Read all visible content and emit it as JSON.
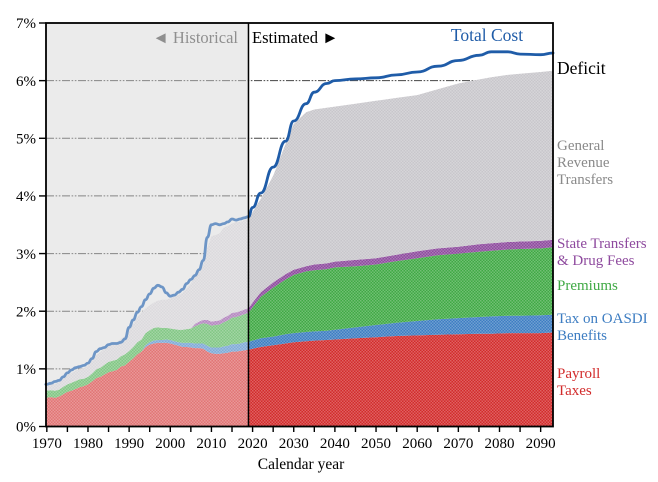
{
  "chart": {
    "xlabel": "Calendar year",
    "region_labels": {
      "historical": "◄ Historical",
      "estimated": "Estimated ►"
    },
    "annotations": {
      "total_cost": "Total Cost",
      "deficit": "Deficit",
      "grt": [
        "General",
        "Revenue",
        "Transfers"
      ],
      "state": [
        "State Transfers",
        "& Drug Fees"
      ],
      "premiums": "Premiums",
      "oasdi": [
        "Tax on OASDI",
        "Benefits"
      ],
      "payroll": [
        "Payroll",
        "Taxes"
      ]
    },
    "colors": {
      "payroll": "#d22b2b",
      "oasdi": "#3d7dc2",
      "premiums": "#3fa944",
      "state": "#8e4a9e",
      "grt": "#c8c6cb",
      "total_cost_line": "#1f5ca8",
      "historical_bg": "#e0e0e0",
      "label_gray": "#8a8a8a",
      "grid": "#444444",
      "axis": "#000000"
    }
  },
  "chart_data": {
    "type": "area",
    "title": "",
    "xlabel": "Calendar year",
    "ylabel": "",
    "ylim": [
      0,
      7
    ],
    "y_tick_labels": [
      "0%",
      "1%",
      "2%",
      "3%",
      "4%",
      "5%",
      "6%",
      "7%"
    ],
    "x_tick_labels": [
      "1970",
      "1980",
      "1990",
      "2000",
      "2010",
      "2020",
      "2030",
      "2040",
      "2050",
      "2060",
      "2070",
      "2080",
      "2090"
    ],
    "x_ticks": [
      1970,
      1980,
      1990,
      2000,
      2010,
      2020,
      2030,
      2040,
      2050,
      2060,
      2070,
      2080,
      2090
    ],
    "x_minor_tick_step": 5,
    "x_range_drawn": [
      1969.8,
      2093
    ],
    "boundary_year": 2019,
    "grid": true,
    "legend_position": "right-margin-labels",
    "years": [
      1970,
      1971,
      1972,
      1973,
      1974,
      1975,
      1976,
      1977,
      1978,
      1979,
      1980,
      1981,
      1982,
      1983,
      1984,
      1985,
      1986,
      1987,
      1988,
      1989,
      1990,
      1991,
      1992,
      1993,
      1994,
      1995,
      1996,
      1997,
      1998,
      1999,
      2000,
      2001,
      2002,
      2003,
      2004,
      2005,
      2006,
      2007,
      2008,
      2009,
      2010,
      2011,
      2012,
      2013,
      2014,
      2015,
      2016,
      2017,
      2018,
      2019,
      2020,
      2022,
      2025,
      2028,
      2030,
      2033,
      2035,
      2038,
      2040,
      2045,
      2050,
      2055,
      2060,
      2065,
      2070,
      2075,
      2078,
      2082,
      2085,
      2090,
      2093
    ],
    "stacked_series": [
      {
        "name": "Payroll Taxes",
        "color_key": "payroll",
        "values": [
          0.5,
          0.51,
          0.5,
          0.52,
          0.56,
          0.6,
          0.62,
          0.65,
          0.68,
          0.7,
          0.73,
          0.78,
          0.84,
          0.86,
          0.9,
          0.94,
          0.96,
          0.98,
          1.04,
          1.06,
          1.12,
          1.18,
          1.25,
          1.3,
          1.38,
          1.42,
          1.44,
          1.45,
          1.45,
          1.45,
          1.44,
          1.42,
          1.4,
          1.38,
          1.38,
          1.37,
          1.36,
          1.36,
          1.35,
          1.3,
          1.27,
          1.26,
          1.26,
          1.27,
          1.28,
          1.3,
          1.3,
          1.31,
          1.32,
          1.33,
          1.35,
          1.38,
          1.41,
          1.44,
          1.46,
          1.48,
          1.49,
          1.5,
          1.51,
          1.53,
          1.55,
          1.57,
          1.58,
          1.59,
          1.6,
          1.61,
          1.61,
          1.62,
          1.62,
          1.62,
          1.63
        ]
      },
      {
        "name": "Tax on OASDI Benefits",
        "color_key": "oasdi",
        "values": [
          0,
          0,
          0,
          0,
          0,
          0,
          0,
          0,
          0,
          0,
          0,
          0,
          0,
          0,
          0,
          0,
          0,
          0,
          0,
          0,
          0,
          0,
          0,
          0,
          0.03,
          0.04,
          0.05,
          0.05,
          0.05,
          0.06,
          0.06,
          0.06,
          0.06,
          0.07,
          0.07,
          0.08,
          0.08,
          0.08,
          0.09,
          0.1,
          0.1,
          0.11,
          0.11,
          0.12,
          0.12,
          0.13,
          0.13,
          0.13,
          0.14,
          0.14,
          0.14,
          0.15,
          0.15,
          0.16,
          0.16,
          0.16,
          0.16,
          0.16,
          0.17,
          0.19,
          0.21,
          0.23,
          0.25,
          0.27,
          0.28,
          0.29,
          0.3,
          0.3,
          0.3,
          0.31,
          0.31
        ]
      },
      {
        "name": "Premiums",
        "color_key": "premiums",
        "values": [
          0.12,
          0.12,
          0.12,
          0.12,
          0.13,
          0.13,
          0.14,
          0.14,
          0.14,
          0.13,
          0.13,
          0.14,
          0.15,
          0.16,
          0.17,
          0.18,
          0.18,
          0.18,
          0.18,
          0.19,
          0.19,
          0.2,
          0.21,
          0.21,
          0.21,
          0.21,
          0.22,
          0.22,
          0.21,
          0.2,
          0.2,
          0.21,
          0.22,
          0.23,
          0.24,
          0.25,
          0.3,
          0.33,
          0.35,
          0.38,
          0.38,
          0.39,
          0.4,
          0.42,
          0.44,
          0.46,
          0.47,
          0.48,
          0.49,
          0.5,
          0.58,
          0.72,
          0.85,
          0.95,
          1.01,
          1.05,
          1.06,
          1.07,
          1.08,
          1.06,
          1.05,
          1.07,
          1.09,
          1.11,
          1.12,
          1.13,
          1.14,
          1.15,
          1.16,
          1.16,
          1.17
        ]
      },
      {
        "name": "State Transfers & Drug Fees",
        "color_key": "state",
        "values": [
          0,
          0,
          0,
          0,
          0,
          0,
          0,
          0,
          0,
          0,
          0,
          0,
          0,
          0,
          0,
          0,
          0,
          0,
          0,
          0,
          0,
          0,
          0,
          0,
          0,
          0,
          0,
          0,
          0,
          0,
          0,
          0,
          0,
          0,
          0,
          0,
          0.04,
          0.05,
          0.06,
          0.07,
          0.07,
          0.07,
          0.07,
          0.08,
          0.08,
          0.08,
          0.08,
          0.08,
          0.08,
          0.08,
          0.08,
          0.08,
          0.09,
          0.09,
          0.09,
          0.09,
          0.1,
          0.1,
          0.1,
          0.11,
          0.11,
          0.11,
          0.12,
          0.12,
          0.12,
          0.13,
          0.13,
          0.13,
          0.13,
          0.13,
          0.13
        ]
      },
      {
        "name": "General Revenue Transfers",
        "color_key": "grt",
        "values": [
          0.09,
          0.1,
          0.12,
          0.13,
          0.14,
          0.16,
          0.17,
          0.18,
          0.18,
          0.18,
          0.2,
          0.22,
          0.25,
          0.27,
          0.28,
          0.31,
          0.32,
          0.3,
          0.3,
          0.32,
          0.37,
          0.4,
          0.44,
          0.47,
          0.43,
          0.43,
          0.44,
          0.46,
          0.49,
          0.49,
          0.52,
          0.56,
          0.6,
          0.64,
          0.71,
          0.78,
          0.82,
          0.88,
          0.95,
          1.25,
          1.48,
          1.49,
          1.51,
          1.56,
          1.56,
          1.55,
          1.57,
          1.55,
          1.55,
          1.55,
          1.57,
          1.62,
          1.85,
          2.26,
          2.53,
          2.67,
          2.69,
          2.7,
          2.69,
          2.71,
          2.73,
          2.72,
          2.71,
          2.76,
          2.83,
          2.86,
          2.88,
          2.9,
          2.91,
          2.93,
          2.93
        ]
      }
    ],
    "line_series": {
      "name": "Total Cost",
      "color_key": "total_cost_line",
      "values": [
        0.73,
        0.75,
        0.78,
        0.8,
        0.86,
        0.93,
        0.98,
        1.02,
        1.04,
        1.06,
        1.1,
        1.18,
        1.3,
        1.35,
        1.37,
        1.42,
        1.44,
        1.44,
        1.46,
        1.52,
        1.72,
        1.85,
        1.98,
        2.08,
        2.2,
        2.3,
        2.4,
        2.45,
        2.42,
        2.32,
        2.26,
        2.28,
        2.33,
        2.38,
        2.48,
        2.55,
        2.62,
        2.72,
        2.88,
        3.28,
        3.5,
        3.52,
        3.5,
        3.52,
        3.55,
        3.6,
        3.58,
        3.6,
        3.62,
        3.64,
        3.8,
        4.05,
        4.5,
        4.95,
        5.3,
        5.6,
        5.8,
        5.95,
        6.0,
        6.03,
        6.05,
        6.1,
        6.15,
        6.25,
        6.35,
        6.44,
        6.5,
        6.5,
        6.46,
        6.45,
        6.48
      ]
    },
    "notes": "Deficit = gap between Total Cost line and top of stacked income areas (right portion)."
  }
}
